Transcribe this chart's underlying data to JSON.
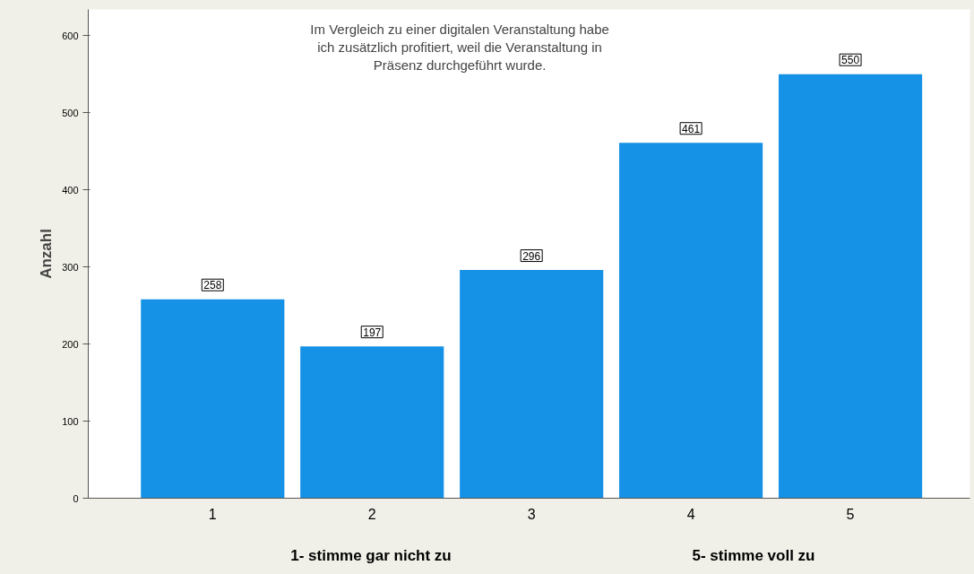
{
  "chart_data": {
    "type": "bar",
    "title": "Im Vergleich zu einer digitalen Veranstaltung habe\nich zusätzlich profitiert, weil die Veranstaltung in\nPräsenz durchgeführt wurde.",
    "ylabel": "Anzahl",
    "categories": [
      "1",
      "2",
      "3",
      "4",
      "5"
    ],
    "values": [
      258,
      197,
      296,
      461,
      550
    ],
    "color": "#1591e6",
    "data_labels": true,
    "grid": false,
    "ylim": [
      0,
      634
    ],
    "yticks": [
      0,
      100,
      200,
      300,
      400,
      500,
      600
    ],
    "annotations": [
      "1- stimme gar nicht zu",
      "5- stimme voll zu"
    ]
  }
}
